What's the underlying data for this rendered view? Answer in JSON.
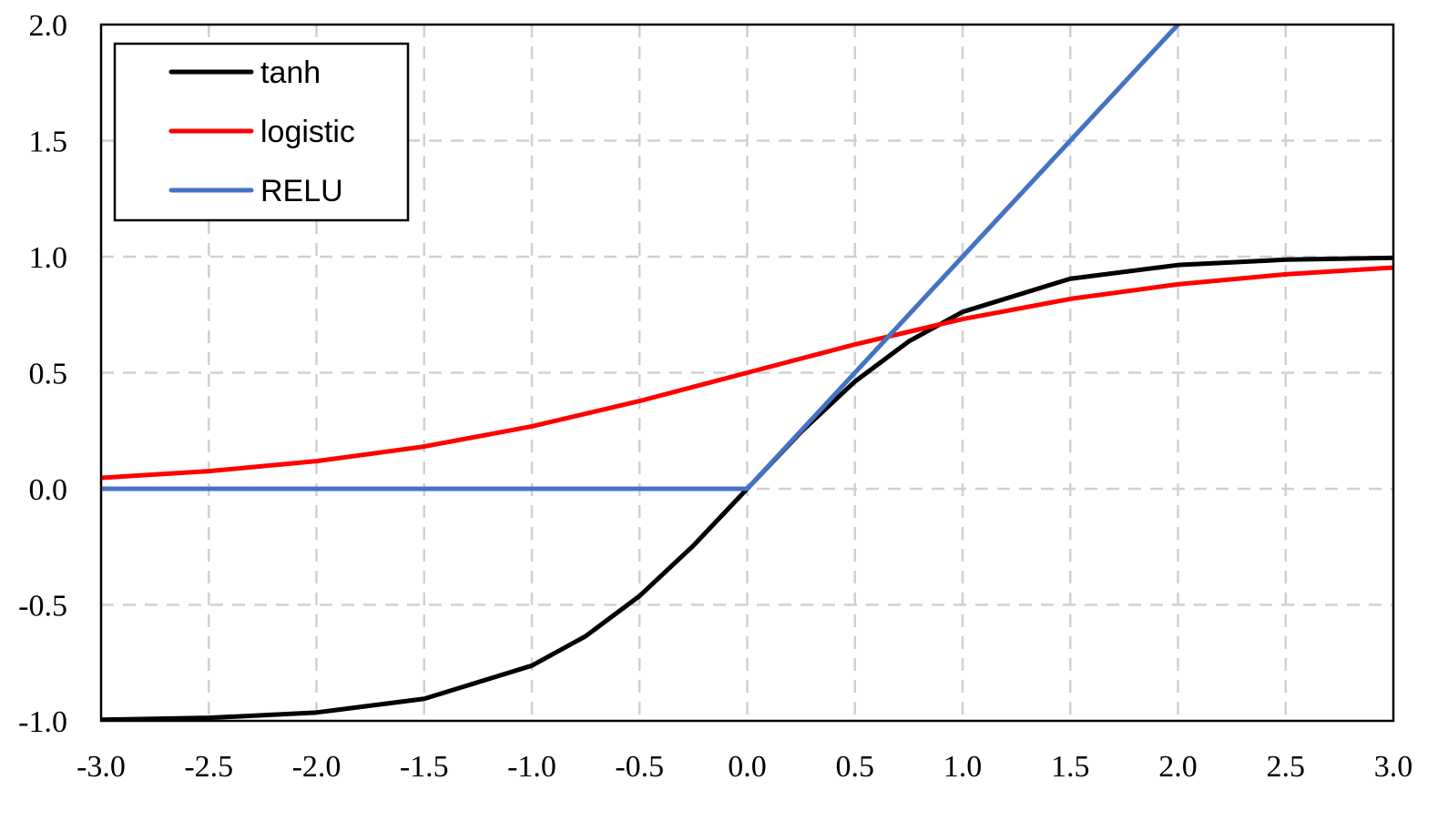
{
  "chart_data": {
    "type": "line",
    "xlim": [
      -3.0,
      3.0
    ],
    "ylim": [
      -1.0,
      2.0
    ],
    "x_ticks": [
      -3.0,
      -2.5,
      -2.0,
      -1.5,
      -1.0,
      -0.5,
      0.0,
      0.5,
      1.0,
      1.5,
      2.0,
      2.5,
      3.0
    ],
    "y_ticks": [
      -1.0,
      -0.5,
      0.0,
      0.5,
      1.0,
      1.5,
      2.0
    ],
    "x_tick_labels": [
      "-3.0",
      "-2.5",
      "-2.0",
      "-1.5",
      "-1.0",
      "-0.5",
      "0.0",
      "0.5",
      "1.0",
      "1.5",
      "2.0",
      "2.5",
      "3.0"
    ],
    "y_tick_labels": [
      "-1.0",
      "-0.5",
      "0.0",
      "0.5",
      "1.0",
      "1.5",
      "2.0"
    ],
    "grid": true,
    "grid_style": "dashed",
    "legend_position": "top-left",
    "series": [
      {
        "name": "tanh",
        "color": "#000000",
        "x": [
          -3.0,
          -2.5,
          -2.0,
          -1.5,
          -1.0,
          -0.75,
          -0.5,
          -0.25,
          0.0,
          0.25,
          0.5,
          0.75,
          1.0,
          1.5,
          2.0,
          2.5,
          3.0
        ],
        "y": [
          -0.995,
          -0.987,
          -0.964,
          -0.905,
          -0.762,
          -0.635,
          -0.462,
          -0.245,
          0.0,
          0.245,
          0.462,
          0.635,
          0.762,
          0.905,
          0.964,
          0.987,
          0.995
        ]
      },
      {
        "name": "logistic",
        "color": "#ff0000",
        "x": [
          -3.0,
          -2.5,
          -2.0,
          -1.5,
          -1.0,
          -0.5,
          0.0,
          0.5,
          1.0,
          1.5,
          2.0,
          2.5,
          3.0
        ],
        "y": [
          0.047,
          0.076,
          0.119,
          0.182,
          0.269,
          0.378,
          0.5,
          0.622,
          0.731,
          0.818,
          0.881,
          0.924,
          0.953
        ]
      },
      {
        "name": "RELU",
        "color": "#4472c4",
        "x": [
          -3.0,
          0.0,
          2.0
        ],
        "y": [
          0.0,
          0.0,
          2.0
        ]
      }
    ]
  }
}
